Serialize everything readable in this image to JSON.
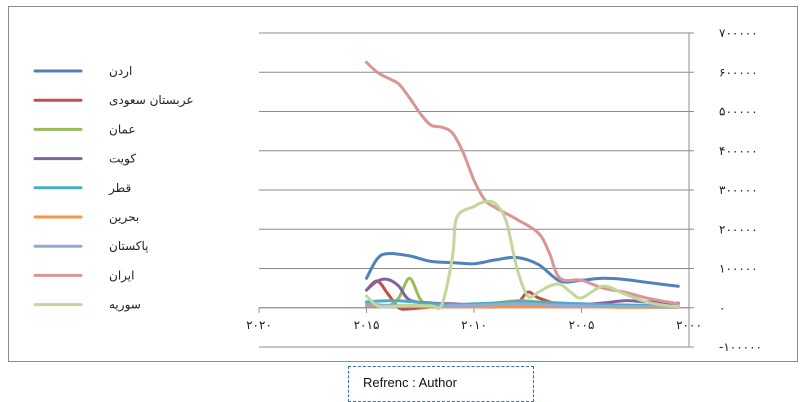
{
  "chart_data": {
    "type": "line",
    "title": "",
    "xlabel": "",
    "ylabel": "",
    "xlim": [
      2020,
      2000
    ],
    "ylim": [
      -100000,
      700000
    ],
    "x_ticks": [
      {
        "value": 2020,
        "label": "۲۰۲۰"
      },
      {
        "value": 2015,
        "label": "۲۰۱۵"
      },
      {
        "value": 2010,
        "label": "۲۰۱۰"
      },
      {
        "value": 2005,
        "label": "۲۰۰۵"
      },
      {
        "value": 2000,
        "label": "۲۰۰۰"
      }
    ],
    "y_ticks": [
      {
        "value": 700000,
        "label": "۷۰۰۰۰۰"
      },
      {
        "value": 600000,
        "label": "۶۰۰۰۰۰"
      },
      {
        "value": 500000,
        "label": "۵۰۰۰۰۰"
      },
      {
        "value": 400000,
        "label": "۴۰۰۰۰۰"
      },
      {
        "value": 300000,
        "label": "۳۰۰۰۰۰"
      },
      {
        "value": 200000,
        "label": "۲۰۰۰۰۰"
      },
      {
        "value": 100000,
        "label": "۱۰۰۰۰۰"
      },
      {
        "value": 0,
        "label": "۰"
      },
      {
        "value": -100000,
        "label": "-۱۰۰۰۰۰"
      }
    ],
    "grid": true,
    "legend_position": "left",
    "series": [
      {
        "name": "اردن",
        "color": "#4f81bd",
        "points": [
          [
            2015,
            75000
          ],
          [
            2014.5,
            125000
          ],
          [
            2014,
            138000
          ],
          [
            2013,
            132000
          ],
          [
            2012,
            118000
          ],
          [
            2011,
            115000
          ],
          [
            2010,
            112000
          ],
          [
            2009,
            122000
          ],
          [
            2008,
            128000
          ],
          [
            2007,
            110000
          ],
          [
            2006,
            68000
          ],
          [
            2005,
            70000
          ],
          [
            2004,
            75000
          ],
          [
            2003,
            72000
          ],
          [
            2002,
            65000
          ],
          [
            2001,
            58000
          ],
          [
            2000.5,
            55000
          ]
        ]
      },
      {
        "name": "عربستان سعودی",
        "color": "#c0504d",
        "points": [
          [
            2015,
            45000
          ],
          [
            2014.5,
            68000
          ],
          [
            2014,
            35000
          ],
          [
            2013.5,
            0
          ],
          [
            2013,
            -3000
          ],
          [
            2012,
            2000
          ],
          [
            2011,
            5000
          ],
          [
            2010,
            2000
          ],
          [
            2009,
            3000
          ],
          [
            2008,
            12000
          ],
          [
            2007.5,
            40000
          ],
          [
            2007,
            25000
          ],
          [
            2006,
            8000
          ],
          [
            2005,
            5000
          ],
          [
            2004,
            3000
          ],
          [
            2003,
            2000
          ],
          [
            2002,
            5000
          ],
          [
            2001,
            8000
          ],
          [
            2000.5,
            12000
          ]
        ]
      },
      {
        "name": "عمان",
        "color": "#9bbb59",
        "points": [
          [
            2015,
            12000
          ],
          [
            2014.5,
            8000
          ],
          [
            2014,
            5000
          ],
          [
            2013.5,
            25000
          ],
          [
            2013,
            75000
          ],
          [
            2012.5,
            22000
          ],
          [
            2012,
            2000
          ],
          [
            2011,
            4000
          ],
          [
            2010,
            8000
          ],
          [
            2009,
            12000
          ],
          [
            2008,
            18000
          ],
          [
            2007,
            15000
          ],
          [
            2006,
            12000
          ],
          [
            2005,
            8000
          ],
          [
            2004,
            6000
          ],
          [
            2003,
            5000
          ],
          [
            2002,
            4000
          ],
          [
            2001,
            3000
          ],
          [
            2000.5,
            2000
          ]
        ]
      },
      {
        "name": "کویت",
        "color": "#8064a2",
        "points": [
          [
            2015,
            45000
          ],
          [
            2014.5,
            68000
          ],
          [
            2014,
            72000
          ],
          [
            2013.5,
            55000
          ],
          [
            2013,
            20000
          ],
          [
            2012,
            12000
          ],
          [
            2011,
            10000
          ],
          [
            2010,
            8000
          ],
          [
            2009,
            10000
          ],
          [
            2008,
            15000
          ],
          [
            2007,
            12000
          ],
          [
            2006,
            10000
          ],
          [
            2005,
            8000
          ],
          [
            2004,
            12000
          ],
          [
            2003,
            18000
          ],
          [
            2002,
            15000
          ],
          [
            2001,
            12000
          ],
          [
            2000.5,
            10000
          ]
        ]
      },
      {
        "name": "قطر",
        "color": "#4bacc6",
        "points": [
          [
            2015,
            15000
          ],
          [
            2014,
            18000
          ],
          [
            2013,
            16000
          ],
          [
            2012,
            10000
          ],
          [
            2011,
            8000
          ],
          [
            2010,
            10000
          ],
          [
            2009,
            12000
          ],
          [
            2008,
            15000
          ],
          [
            2007,
            14000
          ],
          [
            2006,
            12000
          ],
          [
            2005,
            10000
          ],
          [
            2004,
            8000
          ],
          [
            2003,
            7000
          ],
          [
            2002,
            6000
          ],
          [
            2001,
            5000
          ],
          [
            2000.5,
            5000
          ]
        ]
      },
      {
        "name": "بحرین",
        "color": "#f79646",
        "points": [
          [
            2015,
            5000
          ],
          [
            2014,
            4000
          ],
          [
            2013,
            3000
          ],
          [
            2012,
            2000
          ],
          [
            2011,
            2000
          ],
          [
            2010,
            2000
          ],
          [
            2009,
            3000
          ],
          [
            2008,
            3000
          ],
          [
            2007,
            3000
          ],
          [
            2006,
            2000
          ],
          [
            2005,
            2000
          ],
          [
            2004,
            2000
          ],
          [
            2003,
            1000
          ],
          [
            2002,
            1000
          ],
          [
            2001,
            1000
          ],
          [
            2000.5,
            1000
          ]
        ]
      },
      {
        "name": "پاکستان",
        "color": "#95a9d6",
        "points": [
          [
            2015,
            8000
          ],
          [
            2014,
            6000
          ],
          [
            2013,
            5000
          ],
          [
            2012,
            4000
          ],
          [
            2011,
            5000
          ],
          [
            2010,
            6000
          ],
          [
            2009,
            8000
          ],
          [
            2008,
            10000
          ],
          [
            2007,
            8000
          ],
          [
            2006,
            6000
          ],
          [
            2005,
            5000
          ],
          [
            2004,
            4000
          ],
          [
            2003,
            3000
          ],
          [
            2002,
            3000
          ],
          [
            2001,
            2000
          ],
          [
            2000.5,
            2000
          ]
        ]
      },
      {
        "name": "ایران",
        "color": "#d99694",
        "points": [
          [
            2015,
            625000
          ],
          [
            2014.5,
            600000
          ],
          [
            2014,
            585000
          ],
          [
            2013.5,
            570000
          ],
          [
            2013,
            535000
          ],
          [
            2012.5,
            495000
          ],
          [
            2012,
            465000
          ],
          [
            2011.5,
            460000
          ],
          [
            2011,
            445000
          ],
          [
            2010.5,
            395000
          ],
          [
            2010,
            325000
          ],
          [
            2009.5,
            275000
          ],
          [
            2009,
            255000
          ],
          [
            2008,
            225000
          ],
          [
            2007,
            190000
          ],
          [
            2006.5,
            140000
          ],
          [
            2006,
            75000
          ],
          [
            2005,
            70000
          ],
          [
            2004,
            50000
          ],
          [
            2003,
            40000
          ],
          [
            2002,
            25000
          ],
          [
            2001,
            15000
          ],
          [
            2000.5,
            10000
          ]
        ]
      },
      {
        "name": "سوریه",
        "color": "#c3d69b",
        "points": [
          [
            2015,
            30000
          ],
          [
            2014.5,
            5000
          ],
          [
            2014,
            3000
          ],
          [
            2013,
            6000
          ],
          [
            2012,
            5000
          ],
          [
            2011.5,
            8000
          ],
          [
            2011,
            130000
          ],
          [
            2010.8,
            230000
          ],
          [
            2010,
            258000
          ],
          [
            2009.5,
            270000
          ],
          [
            2009,
            265000
          ],
          [
            2008.5,
            220000
          ],
          [
            2008,
            100000
          ],
          [
            2007.5,
            30000
          ],
          [
            2007,
            40000
          ],
          [
            2006.5,
            55000
          ],
          [
            2006,
            60000
          ],
          [
            2005.5,
            40000
          ],
          [
            2005,
            25000
          ],
          [
            2004,
            55000
          ],
          [
            2003,
            35000
          ],
          [
            2002,
            15000
          ],
          [
            2001,
            5000
          ],
          [
            2000.5,
            3000
          ]
        ]
      }
    ]
  },
  "source_note": "Refrenc : Author"
}
